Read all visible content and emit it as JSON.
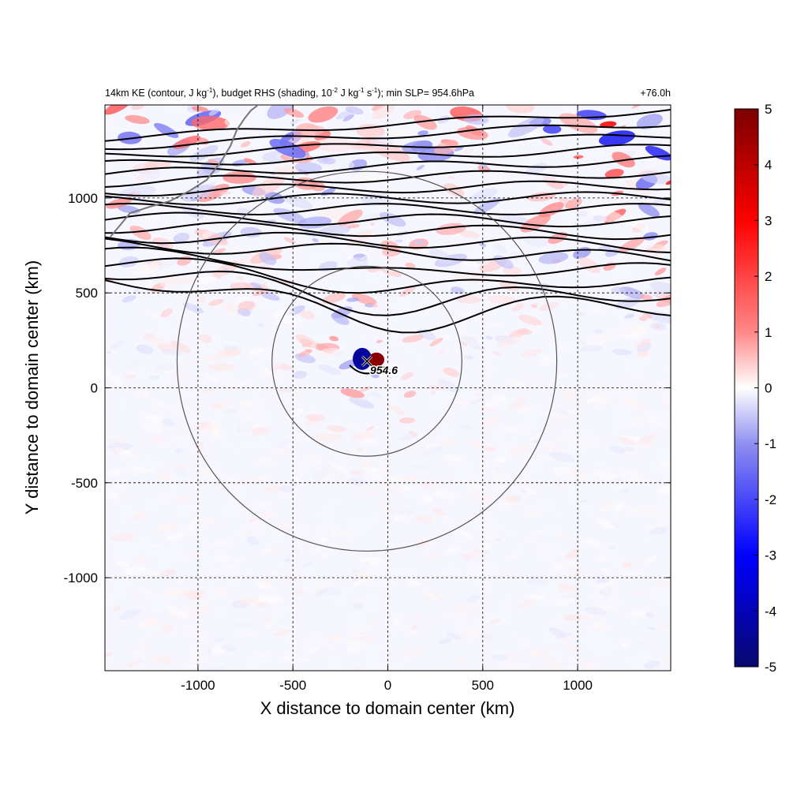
{
  "chart_data": {
    "type": "heatmap",
    "title_parts": {
      "p1": "14km KE (contour, J kg",
      "p1_sup": "-1",
      "p2": "), budget RHS (shading, 10",
      "p2_sup": "-2",
      "p3": " J kg",
      "p3_sup": "-1",
      "p4": " s",
      "p4_sup": "-1",
      "p5": "); min SLP= 954.6hPa"
    },
    "forecast_time": "+76.0h",
    "xlabel": "X distance to domain center (km)",
    "ylabel": "Y distance to domain center (km)",
    "xlim": [
      -1490,
      1490
    ],
    "ylim": [
      -1490,
      1490
    ],
    "xticks": [
      -1000,
      -500,
      0,
      500,
      1000
    ],
    "yticks": [
      -1000,
      -500,
      0,
      500,
      1000
    ],
    "grid": "dashed",
    "colorbar": {
      "min": -5,
      "max": 5,
      "ticks": [
        5,
        4,
        3,
        2,
        1,
        0,
        -1,
        -2,
        -3,
        -4,
        -5
      ],
      "colors": [
        "#08086e",
        "#0000ff",
        "#8f8ff0",
        "#ffffff",
        "#ff8888",
        "#ff0000",
        "#7a0000"
      ]
    },
    "storm_center": {
      "x": -110,
      "y": 140,
      "label": "954.6"
    },
    "range_circles_km": [
      500,
      1000
    ],
    "contour_levels_count": 17
  }
}
